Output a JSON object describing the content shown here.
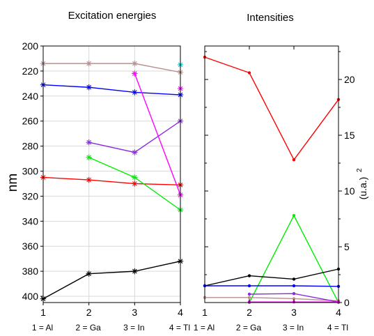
{
  "chart_data": [
    {
      "type": "line",
      "title": "Excitation energies",
      "ylabel": "nm",
      "ylim": [
        200,
        405
      ],
      "y_inverted": true,
      "xlim": [
        1,
        4
      ],
      "x_ticks": [
        "1",
        "2",
        "3",
        "4"
      ],
      "categories": [
        "1 = Al",
        "2 = Ga",
        "3 = In",
        "4 = Tl"
      ],
      "y_ticks": [
        200,
        220,
        240,
        260,
        280,
        300,
        320,
        340,
        360,
        380,
        400
      ],
      "grid": true,
      "marker": "asterisk",
      "series": [
        {
          "color": "#bc8f8f",
          "x": [
            1,
            2,
            3,
            4
          ],
          "values": [
            214,
            214,
            214,
            221
          ]
        },
        {
          "color": "#0000ff",
          "x": [
            1,
            2,
            3,
            4
          ],
          "values": [
            231,
            233,
            237,
            239
          ]
        },
        {
          "color": "#ff0000",
          "x": [
            1,
            2,
            3,
            4
          ],
          "values": [
            305,
            307,
            310,
            311
          ]
        },
        {
          "color": "#000000",
          "x": [
            1,
            2,
            3,
            4
          ],
          "values": [
            402,
            382,
            380,
            372
          ]
        },
        {
          "color": "#8a2be2",
          "x": [
            2,
            3,
            4
          ],
          "values": [
            277,
            285,
            260
          ]
        },
        {
          "color": "#00ee00",
          "x": [
            2,
            3,
            4
          ],
          "values": [
            289,
            305,
            331
          ]
        },
        {
          "color": "#ff00ff",
          "x": [
            3,
            4
          ],
          "values": [
            222,
            319
          ]
        },
        {
          "color": "#ff00ff",
          "x": [
            4
          ],
          "values": [
            234
          ]
        },
        {
          "color": "#00cccc",
          "x": [
            4
          ],
          "values": [
            215
          ]
        }
      ]
    },
    {
      "type": "line",
      "title": "Intensities",
      "ylabel": "(u.a.)",
      "ylabel_sup": "2",
      "ylim": [
        0,
        23
      ],
      "xlim": [
        1,
        4
      ],
      "x_ticks": [
        "1",
        "2",
        "3",
        "4"
      ],
      "categories": [
        "1 = Al",
        "2 = Ga",
        "3 = In",
        "4 = Tl"
      ],
      "y_ticks": [
        0,
        5,
        10,
        15,
        20
      ],
      "y_axis_side": "right",
      "grid": false,
      "marker": "dot",
      "series": [
        {
          "color": "#ff0000",
          "x": [
            1,
            2,
            3,
            4
          ],
          "values": [
            22,
            20.6,
            12.8,
            18.2
          ]
        },
        {
          "color": "#00ee00",
          "x": [
            2,
            3,
            4
          ],
          "values": [
            0,
            7.8,
            0
          ]
        },
        {
          "color": "#000000",
          "x": [
            1,
            2,
            3,
            4
          ],
          "values": [
            1.5,
            2.4,
            2.1,
            3.0
          ]
        },
        {
          "color": "#0000ff",
          "x": [
            1,
            2,
            3,
            4
          ],
          "values": [
            1.5,
            1.5,
            1.5,
            1.45
          ]
        },
        {
          "color": "#bc8f8f",
          "x": [
            1,
            2,
            3,
            4
          ],
          "values": [
            0.45,
            0.45,
            0.35,
            0.15
          ]
        },
        {
          "color": "#8a2be2",
          "x": [
            2,
            3,
            4
          ],
          "values": [
            0.75,
            0.8,
            0.05
          ]
        },
        {
          "color": "#ff00ff",
          "x": [
            2,
            3,
            4
          ],
          "values": [
            0.05,
            0.05,
            0.05
          ]
        }
      ]
    }
  ]
}
